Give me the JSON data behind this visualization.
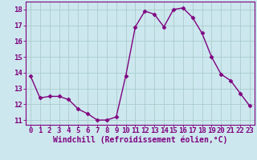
{
  "x": [
    0,
    1,
    2,
    3,
    4,
    5,
    6,
    7,
    8,
    9,
    10,
    11,
    12,
    13,
    14,
    15,
    16,
    17,
    18,
    19,
    20,
    21,
    22,
    23
  ],
  "y": [
    13.8,
    12.4,
    12.5,
    12.5,
    12.3,
    11.7,
    11.4,
    11.0,
    11.0,
    11.2,
    13.8,
    16.9,
    17.9,
    17.7,
    16.9,
    18.0,
    18.1,
    17.5,
    16.5,
    15.0,
    13.9,
    13.5,
    12.7,
    11.9
  ],
  "line_color": "#800080",
  "marker": "D",
  "marker_size": 2.5,
  "bg_color": "#cce8ee",
  "grid_color": "#aacccc",
  "xlabel": "Windchill (Refroidissement éolien,°C)",
  "xlabel_color": "#800080",
  "xlabel_fontsize": 7,
  "ytick_labels": [
    "11",
    "12",
    "13",
    "14",
    "15",
    "16",
    "17",
    "18"
  ],
  "ylim": [
    10.7,
    18.5
  ],
  "xlim": [
    -0.5,
    23.5
  ],
  "tick_color": "#800080",
  "tick_fontsize": 6.5,
  "border_color": "#800080",
  "linewidth": 1.0
}
